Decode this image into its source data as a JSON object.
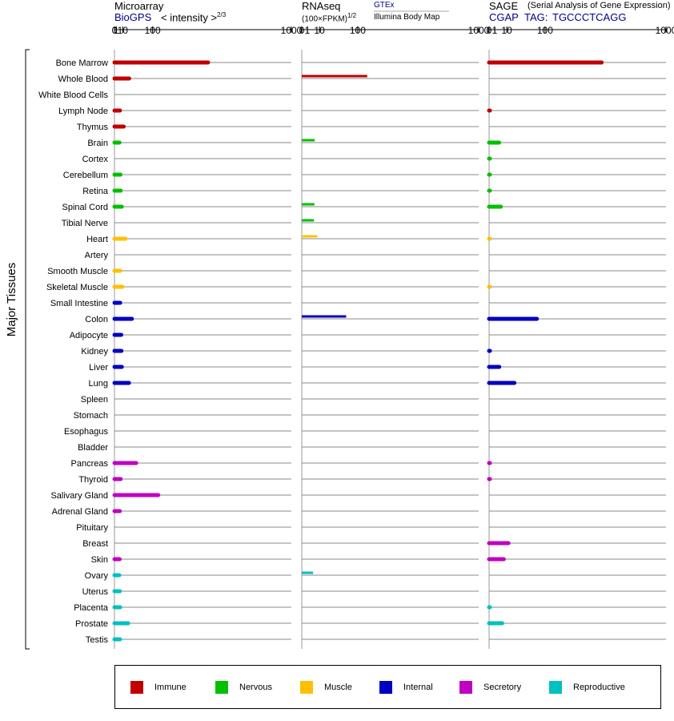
{
  "header": {
    "microarray": {
      "title": "Microarray",
      "source": "BioGPS",
      "measure": "< intensity >",
      "measure_exp": "2/3"
    },
    "rnaseq": {
      "title": "RNAseq",
      "measure": "(100×FPKM)",
      "measure_exp": "1/2",
      "source1": "GTEx",
      "source2": "Illumina Body Map"
    },
    "sage": {
      "title": "SAGE",
      "note": "(Serial Analysis of Gene Expression)",
      "source": "CGAP",
      "tag_label": "TAG:",
      "tag": "TGCCCTCAGG"
    }
  },
  "y_axis_label": "Major Tissues",
  "legend": [
    {
      "label": "Immune",
      "color": "#c00000"
    },
    {
      "label": "Nervous",
      "color": "#00c000"
    },
    {
      "label": "Muscle",
      "color": "#ffc000"
    },
    {
      "label": "Internal",
      "color": "#0000c0"
    },
    {
      "label": "Secretory",
      "color": "#c000c0"
    },
    {
      "label": "Reproductive",
      "color": "#00c0c0"
    }
  ],
  "chart_data": [
    {
      "type": "bar",
      "panel": "Microarray",
      "xscale": "power-2/3",
      "xticks": [
        0,
        1,
        10,
        100,
        1000
      ],
      "xlim": [
        0,
        1000
      ],
      "categories": [
        "Bone Marrow",
        "Whole Blood",
        "White Blood Cells",
        "Lymph Node",
        "Thymus",
        "Brain",
        "Cortex",
        "Cerebellum",
        "Retina",
        "Spinal Cord",
        "Tibial Nerve",
        "Heart",
        "Artery",
        "Smooth Muscle",
        "Skeletal Muscle",
        "Small Intestine",
        "Colon",
        "Adipocyte",
        "Kidney",
        "Liver",
        "Lung",
        "Spleen",
        "Stomach",
        "Esophagus",
        "Bladder",
        "Pancreas",
        "Thyroid",
        "Salivary Gland",
        "Adrenal Gland",
        "Pituitary",
        "Breast",
        "Skin",
        "Ovary",
        "Uterus",
        "Placenta",
        "Prostate",
        "Testis"
      ],
      "groups": [
        "Immune",
        "Immune",
        "Immune",
        "Immune",
        "Immune",
        "Nervous",
        "Nervous",
        "Nervous",
        "Nervous",
        "Nervous",
        "Nervous",
        "Muscle",
        "Muscle",
        "Muscle",
        "Muscle",
        "Internal",
        "Internal",
        "Internal",
        "Internal",
        "Internal",
        "Internal",
        "Internal",
        "Internal",
        "Internal",
        "Internal",
        "Secretory",
        "Secretory",
        "Secretory",
        "Secretory",
        "Secretory",
        "Secretory",
        "Secretory",
        "Reproductive",
        "Reproductive",
        "Reproductive",
        "Reproductive",
        "Reproductive"
      ],
      "values": [
        385,
        24,
        null,
        5.5,
        12,
        4.8,
        null,
        6.3,
        6.6,
        8.5,
        null,
        15.5,
        null,
        6,
        9.5,
        5.8,
        31,
        7.5,
        7.8,
        8.5,
        23.5,
        null,
        null,
        null,
        null,
        43,
        6.6,
        123,
        5.2,
        null,
        null,
        5,
        4.5,
        5.2,
        5.8,
        21.5,
        5.5
      ]
    },
    {
      "type": "bar",
      "panel": "RNAseq",
      "xscale": "power-1/2",
      "xticks": [
        0,
        1,
        10,
        100,
        1000
      ],
      "xlim": [
        0,
        1000
      ],
      "series": [
        {
          "name": "GTEx",
          "values": [
            null,
            137,
            null,
            null,
            null,
            5.4,
            null,
            null,
            null,
            5.1,
            4.7,
            7.6,
            null,
            null,
            null,
            null,
            63,
            null,
            null,
            null,
            null,
            null,
            null,
            null,
            null,
            null,
            null,
            null,
            null,
            null,
            null,
            null,
            4.1,
            null,
            null,
            null,
            null
          ]
        },
        {
          "name": "Illumina Body Map",
          "values": [
            null,
            null,
            null,
            null,
            null,
            null,
            null,
            null,
            null,
            null,
            null,
            null,
            null,
            null,
            null,
            null,
            null,
            null,
            null,
            null,
            null,
            null,
            null,
            null,
            null,
            null,
            null,
            null,
            null,
            null,
            null,
            null,
            null,
            null,
            null,
            null,
            null
          ]
        }
      ]
    },
    {
      "type": "bar",
      "panel": "SAGE",
      "xscale": "power-1/2",
      "xticks": [
        0,
        1,
        10,
        100,
        1000
      ],
      "xlim": [
        0,
        1000
      ],
      "values": [
        405,
        null,
        null,
        0.01,
        null,
        3.2,
        0.002,
        0.002,
        0.002,
        4.4,
        null,
        0.001,
        null,
        null,
        0.001,
        null,
        73,
        null,
        0.015,
        3.3,
        20.5,
        null,
        null,
        null,
        null,
        0.008,
        0.008,
        null,
        null,
        null,
        12,
        6.9,
        null,
        null,
        0.002,
        5.5,
        null
      ]
    }
  ]
}
